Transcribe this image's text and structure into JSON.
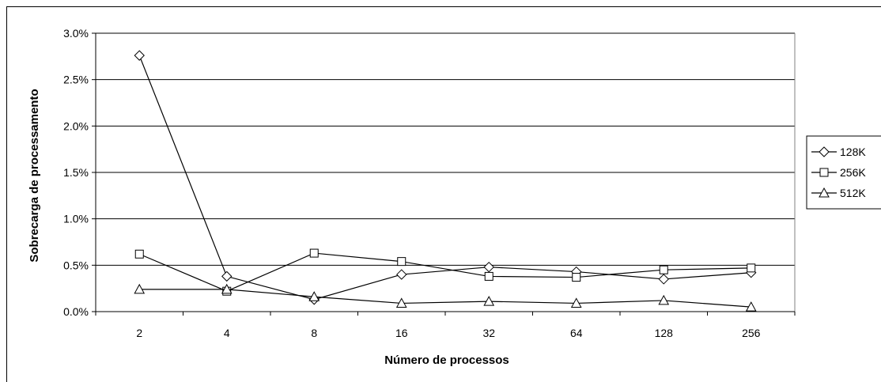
{
  "chart_data": {
    "type": "line",
    "xlabel": "Número de processos",
    "ylabel": "Sobrecarga de processamento",
    "categories": [
      "2",
      "4",
      "8",
      "16",
      "32",
      "64",
      "128",
      "256"
    ],
    "y_ticks": [
      "0.0%",
      "0.5%",
      "1.0%",
      "1.5%",
      "2.0%",
      "2.5%",
      "3.0%"
    ],
    "ylim": [
      0,
      3.0
    ],
    "grid": "horizontal",
    "legend_position": "right",
    "series": [
      {
        "name": "128K",
        "marker": "diamond",
        "values": [
          2.76,
          0.38,
          0.13,
          0.4,
          0.48,
          0.43,
          0.35,
          0.42
        ]
      },
      {
        "name": "256K",
        "marker": "square",
        "values": [
          0.62,
          0.22,
          0.63,
          0.54,
          0.38,
          0.37,
          0.45,
          0.47
        ]
      },
      {
        "name": "512K",
        "marker": "triangle",
        "values": [
          0.24,
          0.24,
          0.16,
          0.09,
          0.11,
          0.09,
          0.12,
          0.05
        ]
      }
    ]
  }
}
